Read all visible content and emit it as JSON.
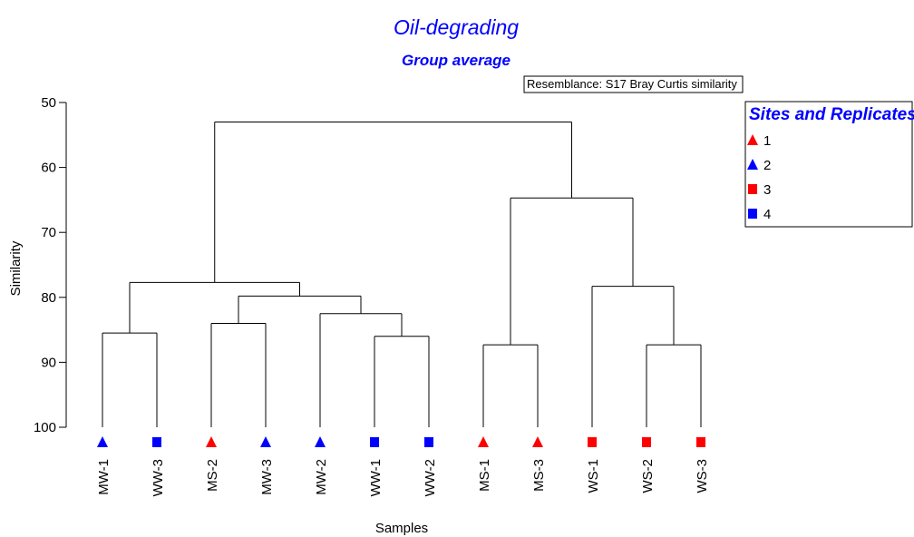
{
  "chart_data": {
    "type": "dendrogram",
    "title": "Oil-degrading",
    "subtitle": "Group average",
    "annotation": "Resemblance: S17 Bray Curtis similarity",
    "xlabel": "Samples",
    "ylabel": "Similarity",
    "ylim": [
      50,
      100
    ],
    "y_ticks": [
      50,
      60,
      70,
      80,
      90,
      100
    ],
    "legend": {
      "title": "Sites and Replicates",
      "position": "top-right",
      "entries": [
        {
          "label": "1",
          "shape": "triangle",
          "color": "#ff0000"
        },
        {
          "label": "2",
          "shape": "triangle",
          "color": "#0000ff"
        },
        {
          "label": "3",
          "shape": "square",
          "color": "#ff0000"
        },
        {
          "label": "4",
          "shape": "square",
          "color": "#0000ff"
        }
      ]
    },
    "samples": [
      {
        "label": "MW-1",
        "group": "2"
      },
      {
        "label": "WW-3",
        "group": "4"
      },
      {
        "label": "MS-2",
        "group": "1"
      },
      {
        "label": "MW-3",
        "group": "2"
      },
      {
        "label": "MW-2",
        "group": "2"
      },
      {
        "label": "WW-1",
        "group": "4"
      },
      {
        "label": "WW-2",
        "group": "4"
      },
      {
        "label": "MS-1",
        "group": "1"
      },
      {
        "label": "MS-3",
        "group": "1"
      },
      {
        "label": "WS-1",
        "group": "3"
      },
      {
        "label": "WS-2",
        "group": "3"
      },
      {
        "label": "WS-3",
        "group": "3"
      }
    ],
    "merges": [
      {
        "left": 0,
        "right": 1,
        "similarity": 85.5
      },
      {
        "left": 5,
        "right": 6,
        "similarity": 86
      },
      {
        "left": 2,
        "right": 3,
        "similarity": 84
      },
      {
        "left": 4,
        "right": "m1",
        "similarity": 82.5
      },
      {
        "left": "m2",
        "right": "m3",
        "similarity": 79.8
      },
      {
        "left": "m0",
        "right": "m4",
        "similarity": 77.7
      },
      {
        "left": 7,
        "right": 8,
        "similarity": 87.3
      },
      {
        "left": 10,
        "right": 11,
        "similarity": 87.3
      },
      {
        "left": 9,
        "right": "m7",
        "similarity": 78.3
      },
      {
        "left": "m6",
        "right": "m8",
        "similarity": 64.7
      },
      {
        "left": "m5",
        "right": "m9",
        "similarity": 53
      }
    ],
    "grid": false
  }
}
